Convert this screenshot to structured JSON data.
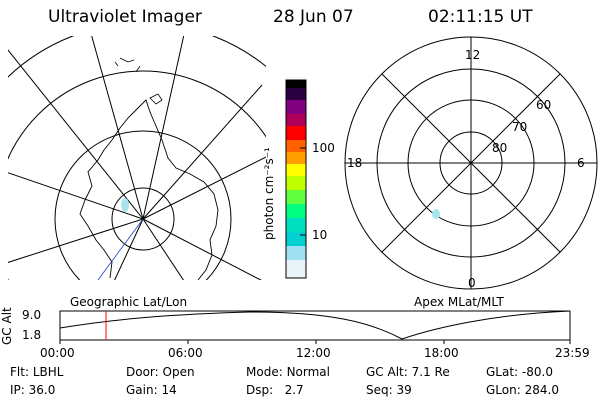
{
  "header": {
    "title": "Ultraviolet Imager",
    "date": "28 Jun 07",
    "time": "02:11:15 UT"
  },
  "left_map": {
    "label": "Geographic Lat/Lon"
  },
  "right_map": {
    "label": "Apex MLat/MLT",
    "mlt_labels": [
      "12",
      "18",
      "6",
      "0"
    ],
    "mlat_labels": [
      "60",
      "70",
      "80"
    ]
  },
  "colorbar": {
    "unit_label": "photon cm⁻²s⁻¹",
    "tick_labels": [
      "100",
      "10"
    ],
    "colors": [
      "#000000",
      "#2a0040",
      "#800080",
      "#a0005a",
      "#ff0000",
      "#ff6000",
      "#ffa000",
      "#ffff00",
      "#a0ff00",
      "#00ff80",
      "#00d0d0",
      "#a0e0f0",
      "#ffffff"
    ]
  },
  "altitude_plot": {
    "ylabel": "GC Alt",
    "y_ticks": [
      "9.0",
      "1.8"
    ],
    "x_ticks": [
      "00:00",
      "06:00",
      "12:00",
      "18:00",
      "23:59"
    ]
  },
  "info": {
    "row1": [
      {
        "key": "Flt:",
        "val": "LBHL"
      },
      {
        "key": "Door:",
        "val": "Open"
      },
      {
        "key": "Mode:",
        "val": "Normal"
      },
      {
        "key": "GC Alt:",
        "val": "7.1 Re"
      },
      {
        "key": "GLat:",
        "val": "-80.0"
      }
    ],
    "row2": [
      {
        "key": "IP:",
        "val": "36.0"
      },
      {
        "key": "Gain:",
        "val": "14"
      },
      {
        "key": "Dsp:",
        "val": "2.7"
      },
      {
        "key": "Seq:",
        "val": "39"
      },
      {
        "key": "GLon:",
        "val": "284.0"
      }
    ]
  }
}
